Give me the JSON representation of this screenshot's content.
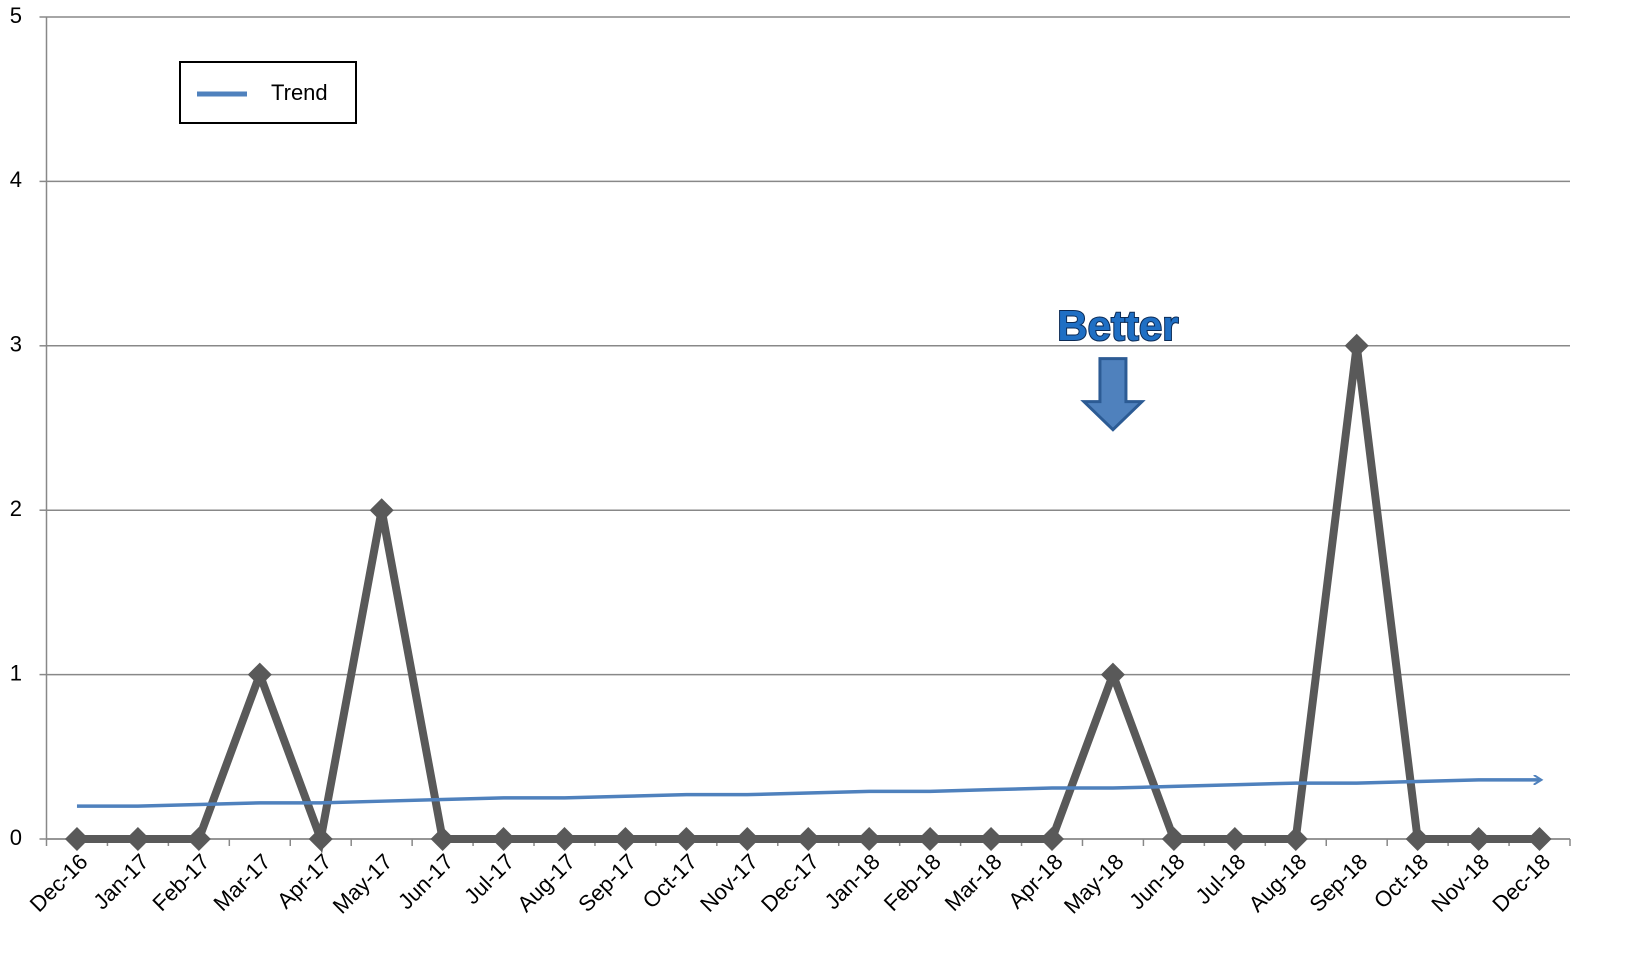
{
  "chart_data": {
    "type": "line",
    "categories": [
      "Dec-16",
      "Jan-17",
      "Feb-17",
      "Mar-17",
      "Apr-17",
      "May-17",
      "Jun-17",
      "Jul-17",
      "Aug-17",
      "Sep-17",
      "Oct-17",
      "Nov-17",
      "Dec-17",
      "Jan-18",
      "Feb-18",
      "Mar-18",
      "Apr-18",
      "May-18",
      "Jun-18",
      "Jul-18",
      "Aug-18",
      "Sep-18",
      "Oct-18",
      "Nov-18",
      "Dec-18"
    ],
    "series": [
      {
        "color": "#595959",
        "values": [
          0,
          0,
          0,
          1,
          0,
          2,
          0,
          0,
          0,
          0,
          0,
          0,
          0,
          0,
          0,
          0,
          0,
          1,
          0,
          0,
          0,
          3,
          0,
          0,
          0
        ]
      },
      {
        "name": "Trend",
        "color": "#4f81bd",
        "values": [
          0.2,
          0.2,
          0.21,
          0.22,
          0.22,
          0.23,
          0.24,
          0.25,
          0.25,
          0.26,
          0.27,
          0.27,
          0.28,
          0.29,
          0.29,
          0.3,
          0.31,
          0.31,
          0.32,
          0.33,
          0.34,
          0.34,
          0.35,
          0.36,
          0.36
        ]
      }
    ],
    "annotation": {
      "text": "Better",
      "category": 17,
      "value": 2.8
    },
    "ylim": [
      0,
      5
    ],
    "yticks": [
      0,
      1,
      2,
      3,
      4,
      5
    ],
    "grid": true,
    "legend": "top-left"
  }
}
